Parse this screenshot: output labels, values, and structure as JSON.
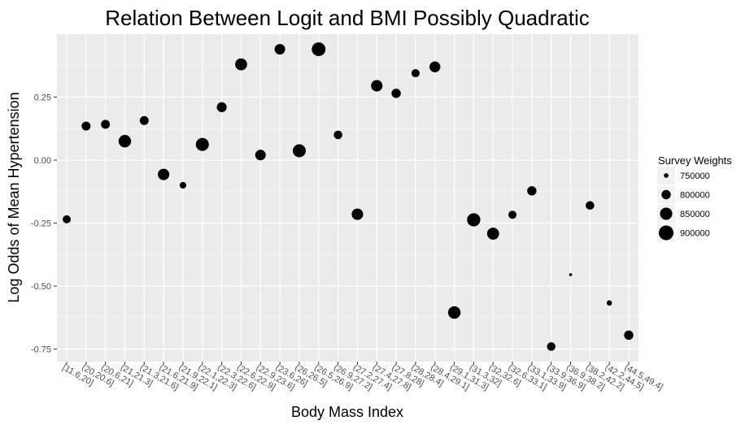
{
  "chart_data": {
    "type": "scatter",
    "title": "Relation Between Logit and BMI Possibly Quadratic",
    "xlabel": "Body Mass Index",
    "ylabel": "Log Odds of Mean Hypertension",
    "categories": [
      "[11.6,20]",
      "(20,20.6]",
      "(20.6,21]",
      "(21,21.3]",
      "(21.3,21.6]",
      "(21.6,21.9]",
      "(21.9,22.1]",
      "(22.1,22.3]",
      "(22.3,22.6]",
      "(22.6,22.9]",
      "(22.9,23.6]",
      "(23.6,26]",
      "(26,26.5]",
      "(26.5,26.9]",
      "(26.9,27.2]",
      "(27.2,27.4]",
      "(27.4,27.8]",
      "(27.8,28]",
      "(28,28.4]",
      "(28.4,29.1]",
      "(29.1,31.3]",
      "(31.3,32]",
      "(32,32.6]",
      "(32.6,33.1]",
      "(33.1,33.9]",
      "(33.9,36.9]",
      "(36.9,38.2]",
      "(38.2,42.2]",
      "(42.2,44.5]",
      "(44.5,49.4]"
    ],
    "series": [
      {
        "y": [
          -0.235,
          0.135,
          0.142,
          0.075,
          0.157,
          -0.057,
          -0.1,
          0.062,
          0.21,
          0.38,
          0.02,
          0.44,
          0.037,
          0.44,
          0.1,
          -0.215,
          0.295,
          0.265,
          0.345,
          0.37,
          -0.605,
          -0.237,
          -0.292,
          -0.217,
          -0.122,
          -0.74,
          -0.455,
          -0.18,
          -0.567,
          -0.695
        ],
        "weights": [
          784000,
          795000,
          795000,
          855000,
          795000,
          835000,
          768000,
          865000,
          810000,
          845000,
          820000,
          820000,
          865000,
          880000,
          790000,
          835000,
          835000,
          800000,
          785000,
          825000,
          855000,
          870000,
          845000,
          785000,
          800000,
          790000,
          740000,
          790000,
          755000,
          800000
        ]
      }
    ],
    "ylim": [
      -0.8,
      0.5
    ],
    "yticks": [
      -0.75,
      -0.5,
      -0.25,
      0.0,
      0.25
    ],
    "ytick_labels": [
      "-0.75",
      "-0.50",
      "-0.25",
      "0.00",
      "0.25"
    ],
    "grid": true,
    "legend": {
      "title": "Survey Weights",
      "position": "right",
      "entries": [
        {
          "label": "750000",
          "value": 750000
        },
        {
          "label": "800000",
          "value": 800000
        },
        {
          "label": "850000",
          "value": 850000
        },
        {
          "label": "900000",
          "value": 900000
        }
      ]
    },
    "colors": {
      "panel": "#ebebeb",
      "grid": "#ffffff",
      "point": "#000000"
    }
  }
}
